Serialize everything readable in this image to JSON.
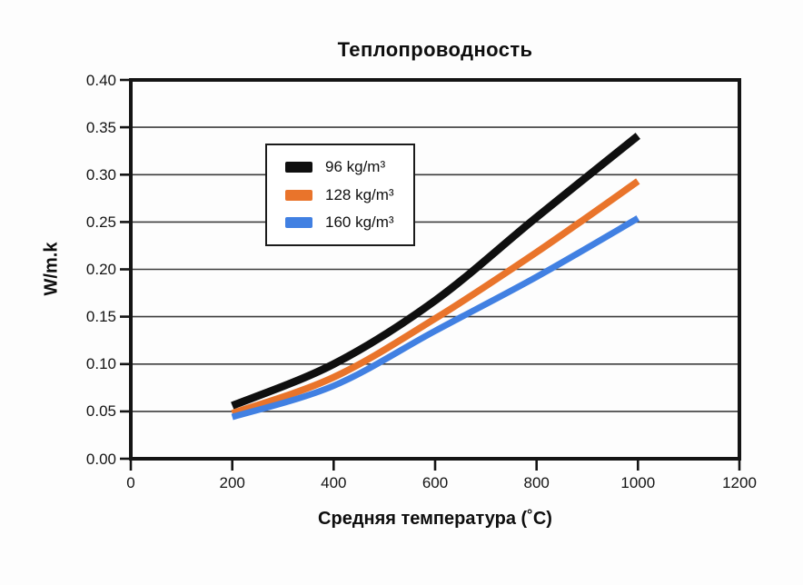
{
  "title": "Теплопроводность",
  "chart_data": {
    "type": "line",
    "title": "Теплопроводность",
    "xlabel": "Средняя температура (˚C)",
    "ylabel": "W/m.k",
    "x": [
      200,
      400,
      600,
      800,
      1000
    ],
    "series": [
      {
        "name": "96 kg/m³",
        "color": "#0f0f0f",
        "values": [
          0.056,
          0.1,
          0.167,
          0.255,
          0.341
        ]
      },
      {
        "name": "128 kg/m³",
        "color": "#e9742b",
        "values": [
          0.048,
          0.086,
          0.148,
          0.218,
          0.293
        ]
      },
      {
        "name": "160 kg/m³",
        "color": "#4180e2",
        "values": [
          0.044,
          0.077,
          0.135,
          0.192,
          0.254
        ]
      }
    ],
    "xlim": [
      0,
      1200
    ],
    "ylim": [
      0,
      0.4
    ],
    "xticks": [
      0,
      200,
      400,
      600,
      800,
      1000,
      1200
    ],
    "xtick_labels": [
      "0",
      "200",
      "400",
      "600",
      "800",
      "1000",
      "1200"
    ],
    "yticks": [
      0,
      0.05,
      0.1,
      0.15,
      0.2,
      0.25,
      0.3,
      0.35,
      0.4
    ],
    "ytick_labels": [
      "0.00",
      "0.05",
      "0.10",
      "0.15",
      "0.20",
      "0.25",
      "0.30",
      "0.35",
      "0.40"
    ],
    "grid": "horizontal",
    "legend_position": "upper-left-inside",
    "axis_color": "#141414",
    "grid_color": "#3c3c3c",
    "background": "#fdfdfd"
  }
}
